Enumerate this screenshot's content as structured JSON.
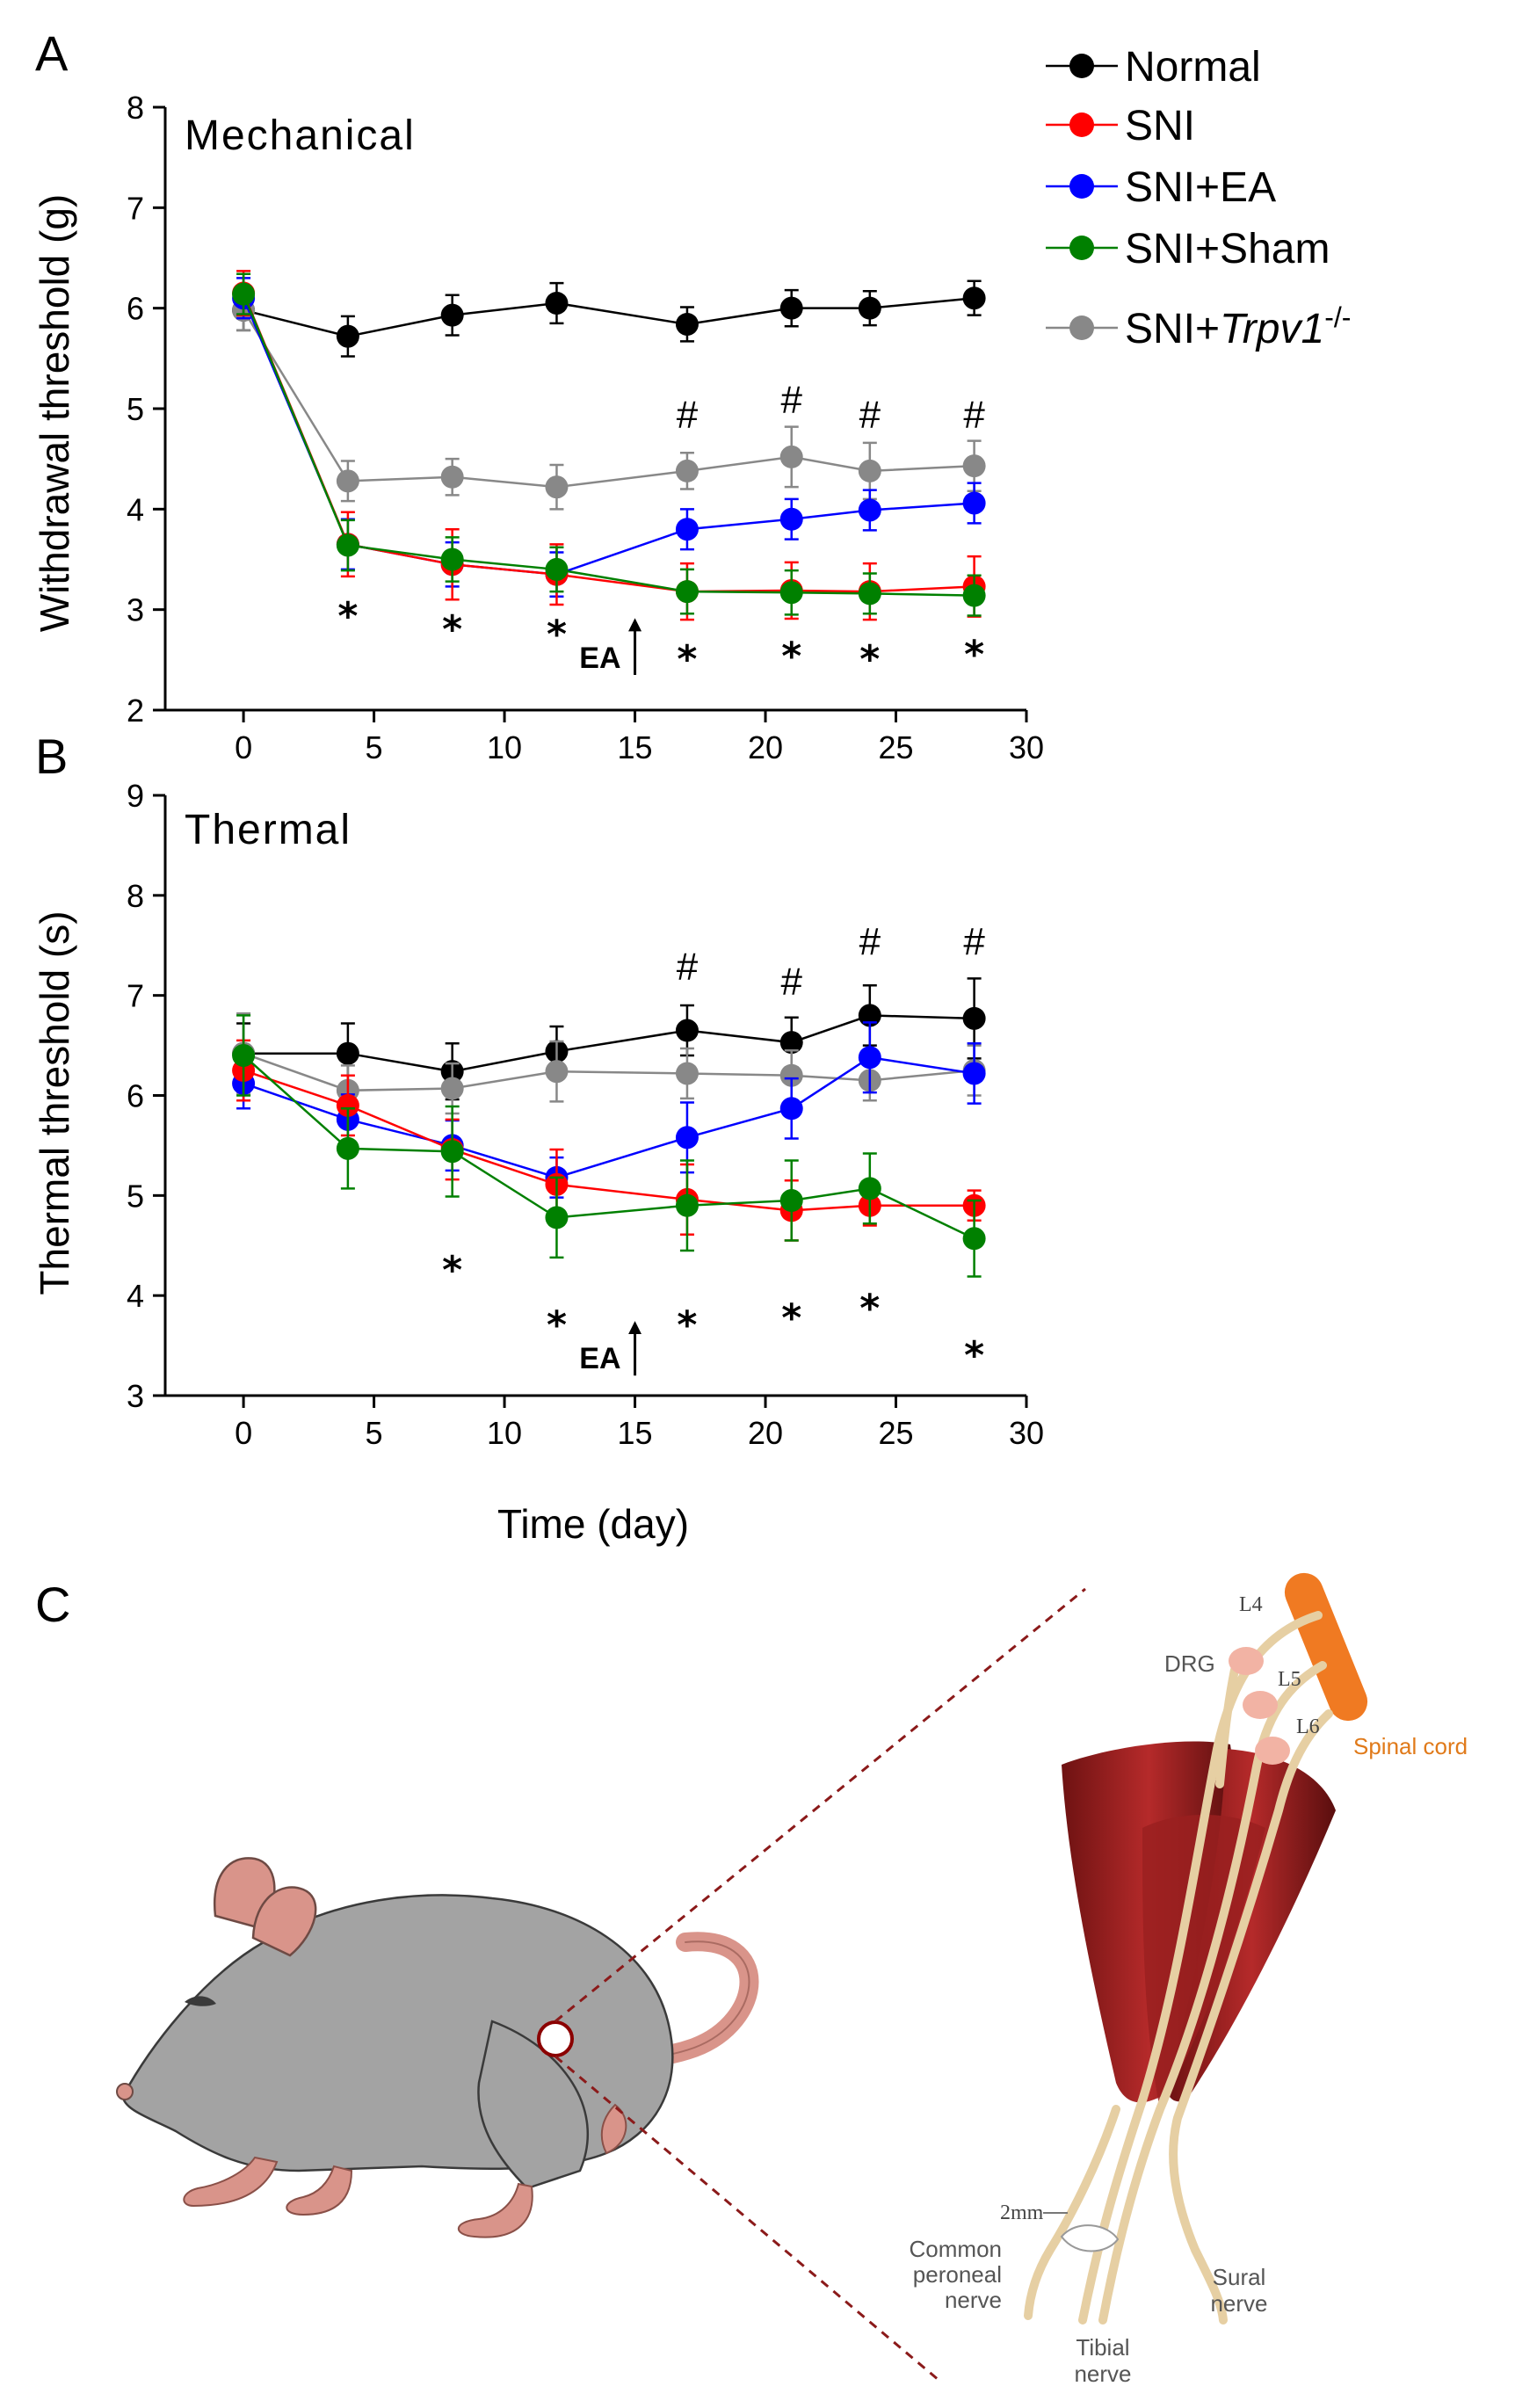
{
  "panels": {
    "a": "A",
    "b": "B",
    "c": "C"
  },
  "legend": [
    {
      "name": "Normal",
      "color": "#000000"
    },
    {
      "name": "SNI",
      "color": "#ff0000"
    },
    {
      "name": "SNI+EA",
      "color": "#0000ff"
    },
    {
      "name": "SNI+Sham",
      "color": "#008000"
    },
    {
      "name": "SNI+",
      "italic": "Trpv1",
      "sup": "-/-",
      "color": "#888888"
    }
  ],
  "chart_data": [
    {
      "type": "line",
      "title": "Mechanical",
      "xlabel": "",
      "ylabel": "Withdrawal threshold (g)",
      "xlim": [
        -3,
        30
      ],
      "ylim": [
        2,
        8
      ],
      "xticks": [
        0,
        5,
        10,
        15,
        20,
        25,
        30
      ],
      "yticks": [
        2,
        3,
        4,
        5,
        6,
        7,
        8
      ],
      "series": [
        {
          "name": "Normal",
          "color": "#000000",
          "x": [
            0,
            4,
            8,
            12,
            17,
            21,
            24,
            28
          ],
          "y": [
            5.98,
            5.72,
            5.93,
            6.05,
            5.84,
            6.0,
            6.0,
            6.1
          ],
          "err": [
            0.2,
            0.2,
            0.2,
            0.2,
            0.17,
            0.18,
            0.17,
            0.17
          ]
        },
        {
          "name": "SNI+Trpv1-/-",
          "color": "#888888",
          "x": [
            0,
            4,
            8,
            12,
            17,
            21,
            24,
            28
          ],
          "y": [
            5.98,
            4.28,
            4.32,
            4.22,
            4.38,
            4.52,
            4.38,
            4.43
          ],
          "err": [
            0.2,
            0.2,
            0.18,
            0.22,
            0.18,
            0.3,
            0.28,
            0.25
          ]
        },
        {
          "name": "SNI+EA",
          "color": "#0000ff",
          "x": [
            0,
            4,
            8,
            12,
            17,
            21,
            24,
            28
          ],
          "y": [
            6.1,
            3.65,
            3.45,
            3.35,
            3.8,
            3.9,
            3.99,
            4.06
          ],
          "err": [
            0.2,
            0.25,
            0.22,
            0.22,
            0.2,
            0.2,
            0.2,
            0.2
          ]
        },
        {
          "name": "SNI",
          "color": "#ff0000",
          "x": [
            0,
            4,
            8,
            12,
            17,
            21,
            24,
            28
          ],
          "y": [
            6.15,
            3.65,
            3.45,
            3.35,
            3.18,
            3.19,
            3.18,
            3.23
          ],
          "err": [
            0.22,
            0.32,
            0.35,
            0.3,
            0.28,
            0.28,
            0.28,
            0.3
          ]
        },
        {
          "name": "SNI+Sham",
          "color": "#008000",
          "x": [
            0,
            4,
            8,
            12,
            17,
            21,
            24,
            28
          ],
          "y": [
            6.14,
            3.64,
            3.5,
            3.4,
            3.18,
            3.17,
            3.16,
            3.14
          ],
          "err": [
            0.2,
            0.25,
            0.22,
            0.22,
            0.22,
            0.22,
            0.2,
            0.2
          ]
        }
      ],
      "annotations": {
        "stars": [
          {
            "x": 4,
            "y": 2.98,
            "t": "*"
          },
          {
            "x": 8,
            "y": 2.85,
            "t": "*"
          },
          {
            "x": 12,
            "y": 2.8,
            "t": "*"
          },
          {
            "x": 17,
            "y": 2.55,
            "t": "*"
          },
          {
            "x": 21,
            "y": 2.58,
            "t": "*"
          },
          {
            "x": 24,
            "y": 2.55,
            "t": "*"
          },
          {
            "x": 28,
            "y": 2.6,
            "t": "*"
          }
        ],
        "hashes": [
          {
            "x": 17,
            "y": 4.95,
            "t": "#"
          },
          {
            "x": 21,
            "y": 5.1,
            "t": "#"
          },
          {
            "x": 24,
            "y": 4.95,
            "t": "#"
          },
          {
            "x": 28,
            "y": 4.95,
            "t": "#"
          }
        ],
        "ea": {
          "label": "EA",
          "x": 15,
          "y_from": 2.35,
          "y_to": 2.92
        }
      }
    },
    {
      "type": "line",
      "title": "Thermal",
      "xlabel": "Time (day)",
      "ylabel": "Thermal threshold (s)",
      "xlim": [
        -3,
        30
      ],
      "ylim": [
        3,
        9
      ],
      "xticks": [
        0,
        5,
        10,
        15,
        20,
        25,
        30
      ],
      "yticks": [
        3,
        4,
        5,
        6,
        7,
        8,
        9
      ],
      "series": [
        {
          "name": "Normal",
          "color": "#000000",
          "x": [
            0,
            4,
            8,
            12,
            17,
            21,
            24,
            28
          ],
          "y": [
            6.42,
            6.42,
            6.24,
            6.44,
            6.65,
            6.53,
            6.8,
            6.77
          ],
          "err": [
            0.3,
            0.3,
            0.28,
            0.25,
            0.25,
            0.25,
            0.3,
            0.4
          ]
        },
        {
          "name": "SNI+Trpv1-/-",
          "color": "#888888",
          "x": [
            0,
            4,
            8,
            12,
            17,
            21,
            24,
            28
          ],
          "y": [
            6.42,
            6.05,
            6.07,
            6.24,
            6.22,
            6.2,
            6.15,
            6.25
          ],
          "err": [
            0.4,
            0.25,
            0.25,
            0.3,
            0.25,
            0.25,
            0.2,
            0.25
          ]
        },
        {
          "name": "SNI+EA",
          "color": "#0000ff",
          "x": [
            0,
            4,
            8,
            12,
            17,
            21,
            24,
            28
          ],
          "y": [
            6.12,
            5.76,
            5.5,
            5.18,
            5.58,
            5.87,
            6.38,
            6.22
          ],
          "err": [
            0.25,
            0.25,
            0.25,
            0.2,
            0.35,
            0.3,
            0.35,
            0.3
          ]
        },
        {
          "name": "SNI",
          "color": "#ff0000",
          "x": [
            0,
            4,
            8,
            12,
            17,
            21,
            24,
            28
          ],
          "y": [
            6.25,
            5.9,
            5.46,
            5.11,
            4.96,
            4.85,
            4.9,
            4.9
          ],
          "err": [
            0.3,
            0.3,
            0.3,
            0.35,
            0.35,
            0.3,
            0.2,
            0.15
          ]
        },
        {
          "name": "SNI+Sham",
          "color": "#008000",
          "x": [
            0,
            4,
            8,
            12,
            17,
            21,
            24,
            28
          ],
          "y": [
            6.4,
            5.47,
            5.44,
            4.78,
            4.9,
            4.95,
            5.07,
            4.57
          ],
          "err": [
            0.4,
            0.4,
            0.45,
            0.4,
            0.45,
            0.4,
            0.35,
            0.38
          ]
        }
      ],
      "annotations": {
        "stars": [
          {
            "x": 8,
            "y": 4.3,
            "t": "*"
          },
          {
            "x": 12,
            "y": 3.75,
            "t": "*"
          },
          {
            "x": 17,
            "y": 3.75,
            "t": "*"
          },
          {
            "x": 21,
            "y": 3.82,
            "t": "*"
          },
          {
            "x": 24,
            "y": 3.92,
            "t": "*"
          },
          {
            "x": 28,
            "y": 3.45,
            "t": "*"
          }
        ],
        "hashes": [
          {
            "x": 17,
            "y": 7.3,
            "t": "#"
          },
          {
            "x": 21,
            "y": 7.15,
            "t": "#"
          },
          {
            "x": 24,
            "y": 7.55,
            "t": "#"
          },
          {
            "x": 28,
            "y": 7.55,
            "t": "#"
          }
        ],
        "ea": {
          "label": "EA",
          "x": 15,
          "y_from": 3.2,
          "y_to": 3.75
        }
      }
    }
  ],
  "diagram": {
    "labels": {
      "drg": "DRG",
      "l4": "L4",
      "l5": "L5",
      "l6": "L6",
      "spinal_cord": "Spinal cord",
      "mm": "2mm",
      "peroneal_1": "Common",
      "peroneal_2": "peroneal",
      "peroneal_3": "nerve",
      "tibial_1": "Tibial",
      "tibial_2": "nerve",
      "sural_1": "Sural",
      "sural_2": "nerve"
    }
  }
}
